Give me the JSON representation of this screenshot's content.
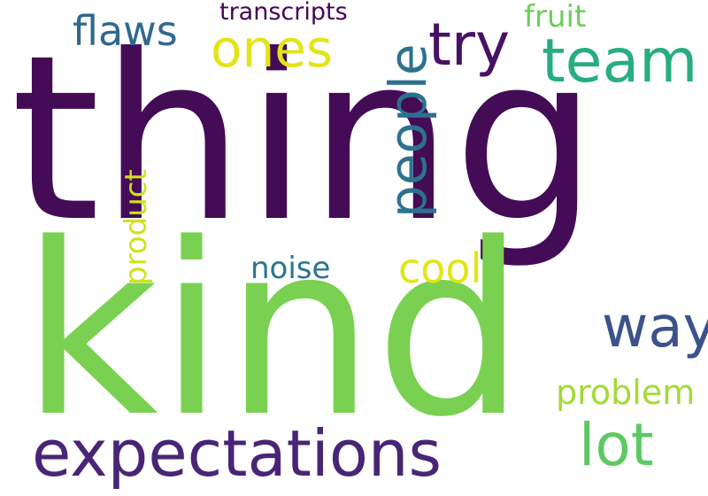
{
  "words": {
    "thing": {
      "text": "thing",
      "color": "#440b57"
    },
    "kind": {
      "text": "kind",
      "color": "#7ad151"
    },
    "expectations": {
      "text": "expectations",
      "color": "#482576"
    },
    "team": {
      "text": "team",
      "color": "#27ad81"
    },
    "people": {
      "text": "people",
      "color": "#2c728e"
    },
    "try": {
      "text": "try",
      "color": "#471164"
    },
    "ones": {
      "text": "ones",
      "color": "#e3e418"
    },
    "flaws": {
      "text": "flaws",
      "color": "#31688e"
    },
    "transcripts": {
      "text": "transcripts",
      "color": "#450457"
    },
    "fruit": {
      "text": "fruit",
      "color": "#6ccd5a"
    },
    "product": {
      "text": "product",
      "color": "#d0e11c"
    },
    "noise": {
      "text": "noise",
      "color": "#2a768e"
    },
    "cool": {
      "text": "cool",
      "color": "#e2e418"
    },
    "way": {
      "text": "way",
      "color": "#3b528b"
    },
    "problem": {
      "text": "problem",
      "color": "#a2da37"
    },
    "lot": {
      "text": "lot",
      "color": "#5ec962"
    }
  }
}
